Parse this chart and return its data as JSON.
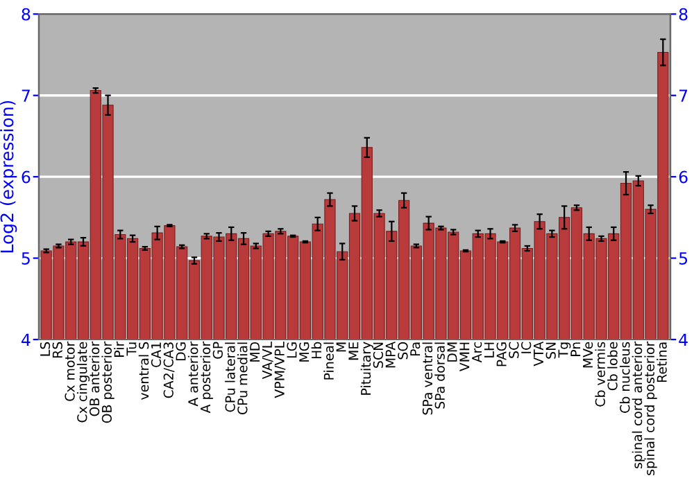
{
  "chart_data": {
    "type": "bar",
    "ylabel": "Log2 (expression)",
    "categories": [
      "LS",
      "RS",
      "Cx motor",
      "Cx cingulate",
      "OB anterior",
      "OB posterior",
      "Pir",
      "Tu",
      "ventral S",
      "CA1",
      "CA2/CA3",
      "DG",
      "A anterior",
      "A posterior",
      "GP",
      "CPu lateral",
      "CPu medial",
      "MD",
      "VA/VL",
      "VPM/VPL",
      "LG",
      "MG",
      "Hb",
      "Pineal",
      "M",
      "ME",
      "Pituitary",
      "SCN",
      "MPA",
      "SO",
      "Pa",
      "SPa ventral",
      "SPa dorsal",
      "DM",
      "VMH",
      "Arc",
      "LH",
      "PAG",
      "SC",
      "IC",
      "VTA",
      "SN",
      "Tg",
      "Pn",
      "MVe",
      "Cb vermis",
      "Cb lobe",
      "Cb nucleus",
      "spinal cord anterior",
      "spinal cord posterior",
      "Retina"
    ],
    "values": [
      5.09,
      5.15,
      5.2,
      5.2,
      7.06,
      6.88,
      5.29,
      5.24,
      5.12,
      5.31,
      5.4,
      5.14,
      4.97,
      5.27,
      5.26,
      5.3,
      5.24,
      5.15,
      5.3,
      5.33,
      5.27,
      5.2,
      5.42,
      5.72,
      5.08,
      5.55,
      6.36,
      5.55,
      5.33,
      5.71,
      5.15,
      5.43,
      5.37,
      5.32,
      5.09,
      5.3,
      5.3,
      5.2,
      5.37,
      5.12,
      5.45,
      5.3,
      5.5,
      5.62,
      5.3,
      5.24,
      5.3,
      5.92,
      5.95,
      5.6,
      7.53
    ],
    "errors": [
      0.02,
      0.02,
      0.03,
      0.05,
      0.03,
      0.12,
      0.05,
      0.04,
      0.02,
      0.08,
      0.01,
      0.02,
      0.04,
      0.03,
      0.05,
      0.08,
      0.07,
      0.03,
      0.03,
      0.03,
      0.01,
      0.01,
      0.08,
      0.08,
      0.1,
      0.09,
      0.12,
      0.04,
      0.12,
      0.09,
      0.02,
      0.08,
      0.02,
      0.03,
      0.01,
      0.04,
      0.06,
      0.01,
      0.04,
      0.03,
      0.09,
      0.04,
      0.14,
      0.03,
      0.08,
      0.03,
      0.08,
      0.14,
      0.06,
      0.05,
      0.16
    ],
    "color": "#b83a3a",
    "ylim": [
      4,
      8
    ],
    "yticks": [
      4,
      5,
      6,
      7,
      8
    ],
    "y2lim": [
      4,
      8
    ],
    "y2ticks": [
      4,
      5,
      6,
      7,
      8
    ],
    "grid": "y"
  }
}
